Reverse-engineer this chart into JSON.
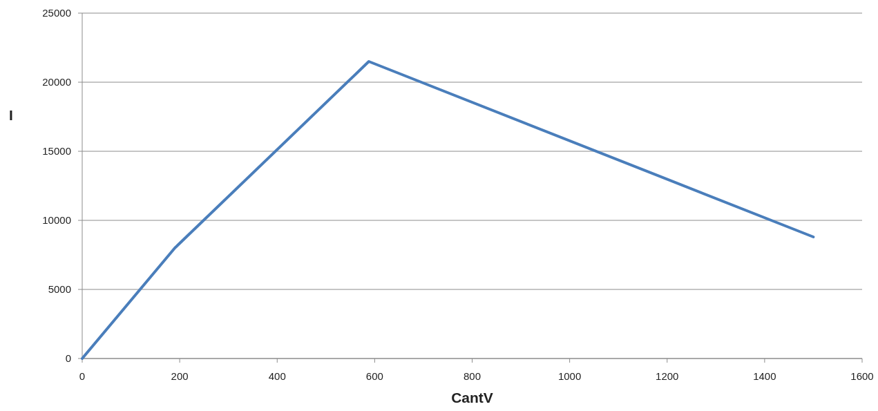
{
  "chart_data": {
    "type": "line",
    "xlabel": "CantV",
    "ylabel": "I",
    "x": [
      0,
      190,
      588,
      1500
    ],
    "series": [
      {
        "color": "#4a7ebb",
        "values": [
          0,
          8000,
          21500,
          8800
        ]
      }
    ],
    "xlim": [
      0,
      1600
    ],
    "xticks": [
      0,
      200,
      400,
      600,
      800,
      1000,
      1200,
      1400,
      1600
    ],
    "ylim": [
      0,
      25000
    ],
    "yticks": [
      0,
      5000,
      10000,
      15000,
      20000,
      25000
    ],
    "grid": "y",
    "marker": "none",
    "line_style": "solid"
  }
}
